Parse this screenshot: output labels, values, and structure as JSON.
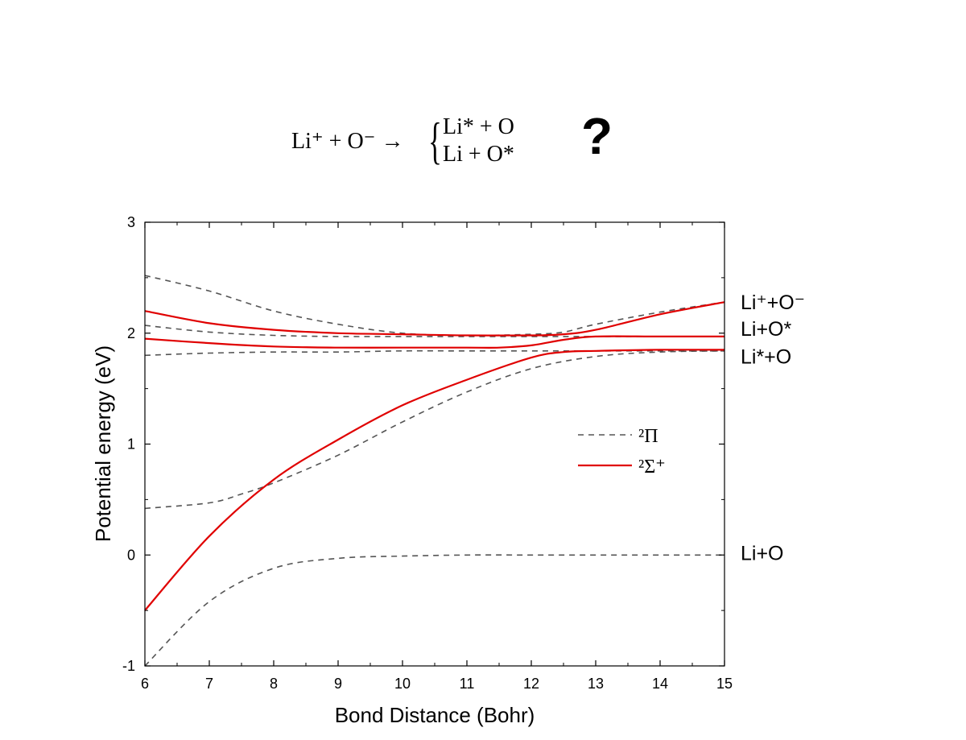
{
  "reaction": {
    "lhs": "Li⁺ + O⁻ →",
    "brace": "{",
    "line1": "Li* + O",
    "line2": "Li + O*",
    "question": "?"
  },
  "chart_data": {
    "type": "line",
    "xlabel": "Bond Distance (Bohr)",
    "ylabel": "Potential energy (eV)",
    "xlim": [
      6,
      15
    ],
    "ylim": [
      -1,
      3
    ],
    "xticks": [
      "6",
      "7",
      "8",
      "9",
      "10",
      "11",
      "12",
      "13",
      "14",
      "15"
    ],
    "yticks": [
      "-1",
      "0",
      "1",
      "2",
      "3"
    ],
    "grid": false,
    "legend_position": "center-right",
    "legend": [
      {
        "label": "²Π",
        "style": "dashed",
        "color": "#555555"
      },
      {
        "label": "²Σ⁺",
        "style": "solid",
        "color": "#e00000"
      }
    ],
    "asymptote_labels": [
      {
        "text": "Li⁺+O⁻",
        "y": 2.28
      },
      {
        "text": "Li+O*",
        "y": 2.04
      },
      {
        "text": "Li*+O",
        "y": 1.79
      },
      {
        "text": "Li+O",
        "y": 0.02
      }
    ],
    "series": [
      {
        "group": "²Π",
        "style": "dashed",
        "color": "#555555",
        "x": [
          6,
          7,
          8,
          9,
          10,
          11,
          12,
          13,
          14,
          15
        ],
        "y": [
          -1.0,
          -0.42,
          -0.12,
          -0.03,
          -0.01,
          0,
          0,
          0,
          0,
          0
        ]
      },
      {
        "group": "²Π",
        "style": "dashed",
        "color": "#555555",
        "x": [
          6,
          7,
          7.5,
          8,
          9,
          10,
          11,
          12,
          13,
          14,
          15
        ],
        "y": [
          0.42,
          0.47,
          0.55,
          0.65,
          0.9,
          1.2,
          1.47,
          1.68,
          1.79,
          1.83,
          1.84
        ]
      },
      {
        "group": "²Π",
        "style": "dashed",
        "color": "#555555",
        "x": [
          6,
          7,
          8,
          9,
          10,
          11,
          12,
          13,
          14,
          15
        ],
        "y": [
          1.8,
          1.82,
          1.83,
          1.83,
          1.84,
          1.84,
          1.84,
          1.84,
          1.84,
          1.84
        ]
      },
      {
        "group": "²Π",
        "style": "dashed",
        "color": "#555555",
        "x": [
          6,
          7,
          8,
          9,
          10,
          11,
          12,
          13,
          14,
          15
        ],
        "y": [
          2.07,
          2.01,
          1.98,
          1.97,
          1.97,
          1.97,
          1.97,
          1.97,
          1.97,
          1.97
        ]
      },
      {
        "group": "²Π",
        "style": "dashed",
        "color": "#555555",
        "x": [
          6,
          7,
          8,
          9,
          10,
          11,
          12,
          12.5,
          13,
          14,
          15
        ],
        "y": [
          2.52,
          2.38,
          2.2,
          2.08,
          2.0,
          1.98,
          1.99,
          2.01,
          2.08,
          2.19,
          2.28
        ]
      },
      {
        "group": "²Σ⁺",
        "style": "solid",
        "color": "#e00000",
        "x": [
          6,
          7,
          8,
          9,
          10,
          11,
          12,
          12.5,
          13,
          14,
          15
        ],
        "y": [
          -0.5,
          0.17,
          0.68,
          1.04,
          1.35,
          1.58,
          1.78,
          1.83,
          1.84,
          1.85,
          1.85
        ]
      },
      {
        "group": "²Σ⁺",
        "style": "solid",
        "color": "#e00000",
        "x": [
          6,
          7,
          8,
          9,
          10,
          11,
          11.5,
          12,
          12.5,
          13,
          14,
          15
        ],
        "y": [
          1.95,
          1.91,
          1.88,
          1.87,
          1.87,
          1.87,
          1.87,
          1.89,
          1.94,
          1.97,
          1.97,
          1.97
        ]
      },
      {
        "group": "²Σ⁺",
        "style": "solid",
        "color": "#e00000",
        "x": [
          6,
          7,
          8,
          9,
          10,
          11,
          12,
          12.5,
          13,
          14,
          15
        ],
        "y": [
          2.2,
          2.09,
          2.03,
          2.0,
          1.99,
          1.98,
          1.98,
          1.99,
          2.03,
          2.17,
          2.28
        ]
      }
    ]
  }
}
